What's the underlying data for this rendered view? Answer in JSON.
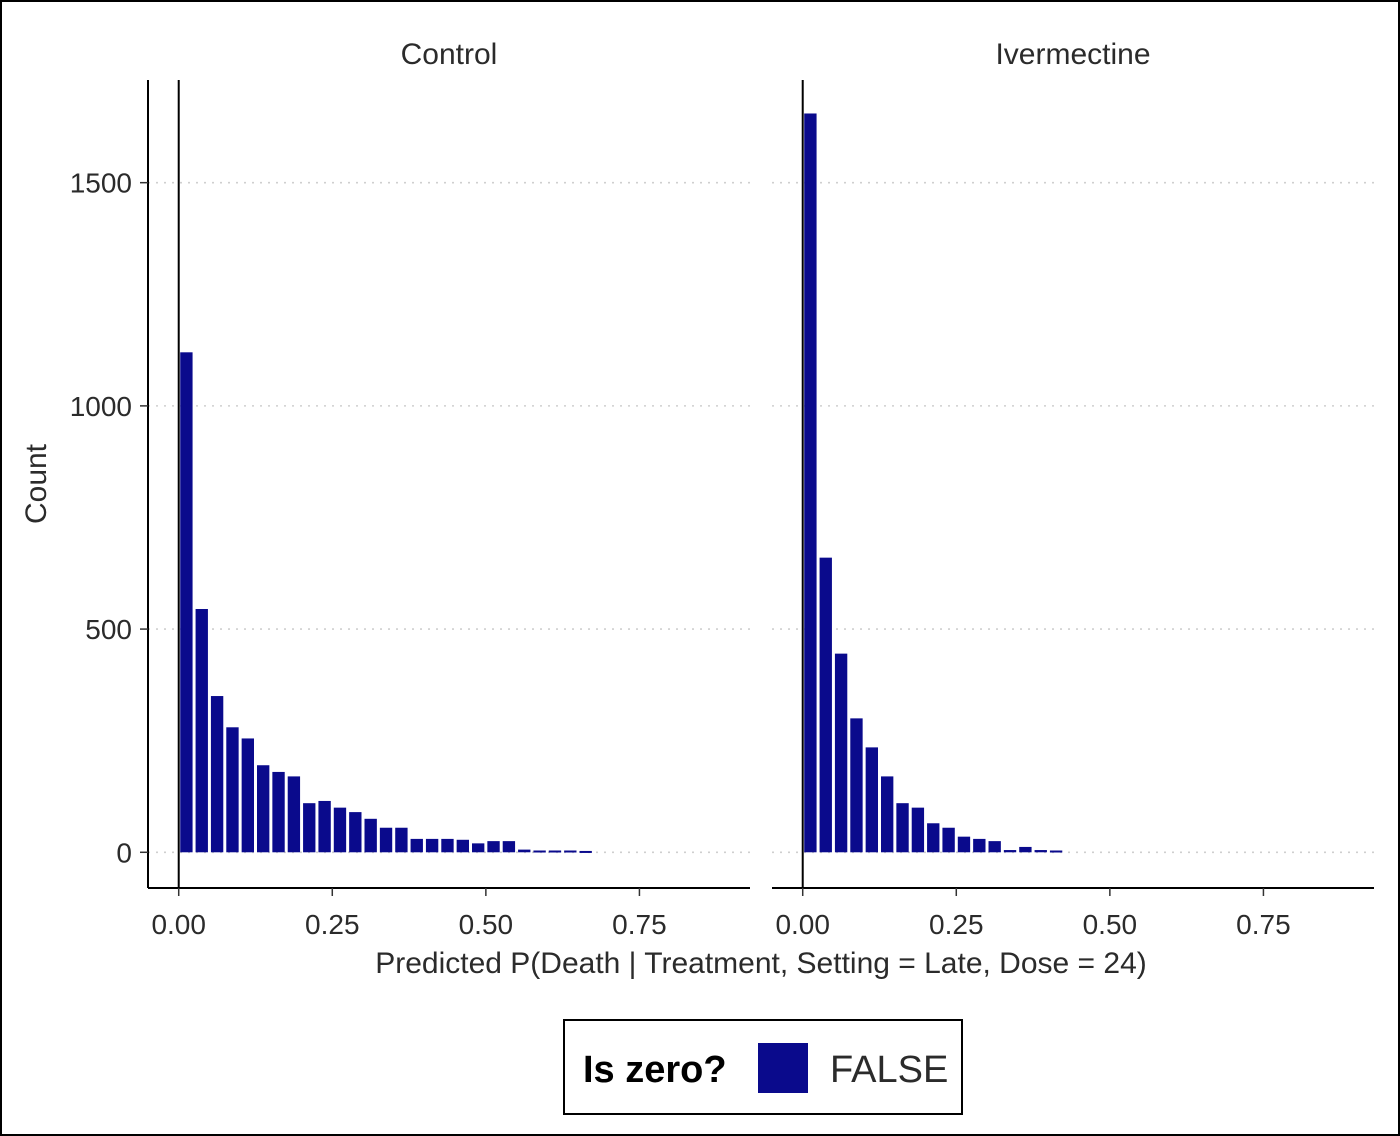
{
  "chart_data": {
    "type": "bar",
    "xlabel": "Predicted P(Death | Treatment, Setting = Late, Dose = 24)",
    "ylabel": "Count",
    "xlim": [
      -0.05,
      0.93
    ],
    "ylim": [
      -80,
      1730
    ],
    "x_ticks": [
      0.0,
      0.25,
      0.5,
      0.75
    ],
    "x_tick_labels": [
      "0.00",
      "0.25",
      "0.50",
      "0.75"
    ],
    "y_ticks": [
      0,
      500,
      1000,
      1500
    ],
    "y_tick_labels": [
      "0",
      "500",
      "1000",
      "1500"
    ],
    "grid": "horizontal-dotted",
    "bin_width": 0.025,
    "bar_color": "#0a0a8c",
    "panels": [
      {
        "title": "Control",
        "bin_centers": [
          0.0125,
          0.0375,
          0.0625,
          0.0875,
          0.1125,
          0.1375,
          0.1625,
          0.1875,
          0.2125,
          0.2375,
          0.2625,
          0.2875,
          0.3125,
          0.3375,
          0.3625,
          0.3875,
          0.4125,
          0.4375,
          0.4625,
          0.4875,
          0.5125,
          0.5375,
          0.5625,
          0.5875,
          0.6125,
          0.6375,
          0.6625
        ],
        "values": [
          1120,
          545,
          350,
          280,
          255,
          195,
          180,
          170,
          110,
          115,
          100,
          90,
          75,
          55,
          55,
          30,
          30,
          30,
          28,
          20,
          25,
          25,
          6,
          4,
          4,
          4,
          3
        ]
      },
      {
        "title": "Ivermectine",
        "bin_centers": [
          0.0125,
          0.0375,
          0.0625,
          0.0875,
          0.1125,
          0.1375,
          0.1625,
          0.1875,
          0.2125,
          0.2375,
          0.2625,
          0.2875,
          0.3125,
          0.3375,
          0.3625,
          0.3875,
          0.4125
        ],
        "values": [
          1655,
          660,
          445,
          300,
          235,
          170,
          110,
          100,
          65,
          55,
          35,
          30,
          25,
          5,
          12,
          5,
          4
        ]
      }
    ]
  },
  "legend": {
    "title": "Is zero?",
    "entries": [
      {
        "label": "FALSE",
        "color": "#0a0a8c"
      }
    ]
  }
}
